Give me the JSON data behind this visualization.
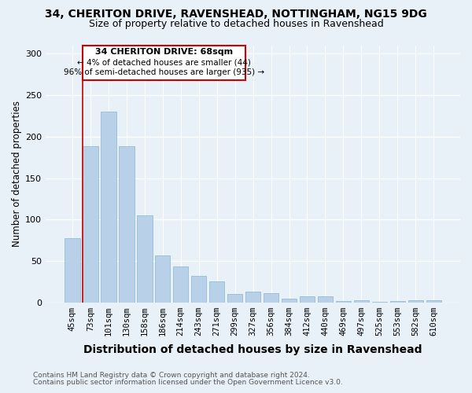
{
  "title_line1": "34, CHERITON DRIVE, RAVENSHEAD, NOTTINGHAM, NG15 9DG",
  "title_line2": "Size of property relative to detached houses in Ravenshead",
  "xlabel": "Distribution of detached houses by size in Ravenshead",
  "ylabel": "Number of detached properties",
  "categories": [
    "45sqm",
    "73sqm",
    "101sqm",
    "130sqm",
    "158sqm",
    "186sqm",
    "214sqm",
    "243sqm",
    "271sqm",
    "299sqm",
    "327sqm",
    "356sqm",
    "384sqm",
    "412sqm",
    "440sqm",
    "469sqm",
    "497sqm",
    "525sqm",
    "553sqm",
    "582sqm",
    "610sqm"
  ],
  "values": [
    78,
    188,
    230,
    188,
    105,
    57,
    44,
    32,
    26,
    10,
    13,
    11,
    5,
    8,
    8,
    2,
    3,
    1,
    2,
    3,
    3
  ],
  "bar_color": "#b8d0e8",
  "bar_edge_color": "#8ab8d0",
  "annotation_box_facecolor": "#ffffff",
  "annotation_border_color": "#cc0000",
  "vline_color": "#cc0000",
  "annotation_title": "34 CHERITON DRIVE: 68sqm",
  "annotation_line1": "← 4% of detached houses are smaller (44)",
  "annotation_line2": "96% of semi-detached houses are larger (935) →",
  "ylim": [
    0,
    310
  ],
  "yticks": [
    0,
    50,
    100,
    150,
    200,
    250,
    300
  ],
  "footnote1": "Contains HM Land Registry data © Crown copyright and database right 2024.",
  "footnote2": "Contains public sector information licensed under the Open Government Licence v3.0.",
  "bg_color": "#e8f0f8",
  "grid_color": "#ffffff",
  "title_fontsize": 10,
  "subtitle_fontsize": 9,
  "xlabel_fontsize": 10,
  "ylabel_fontsize": 8.5,
  "tick_fontsize": 7.5,
  "footnote_fontsize": 6.5
}
